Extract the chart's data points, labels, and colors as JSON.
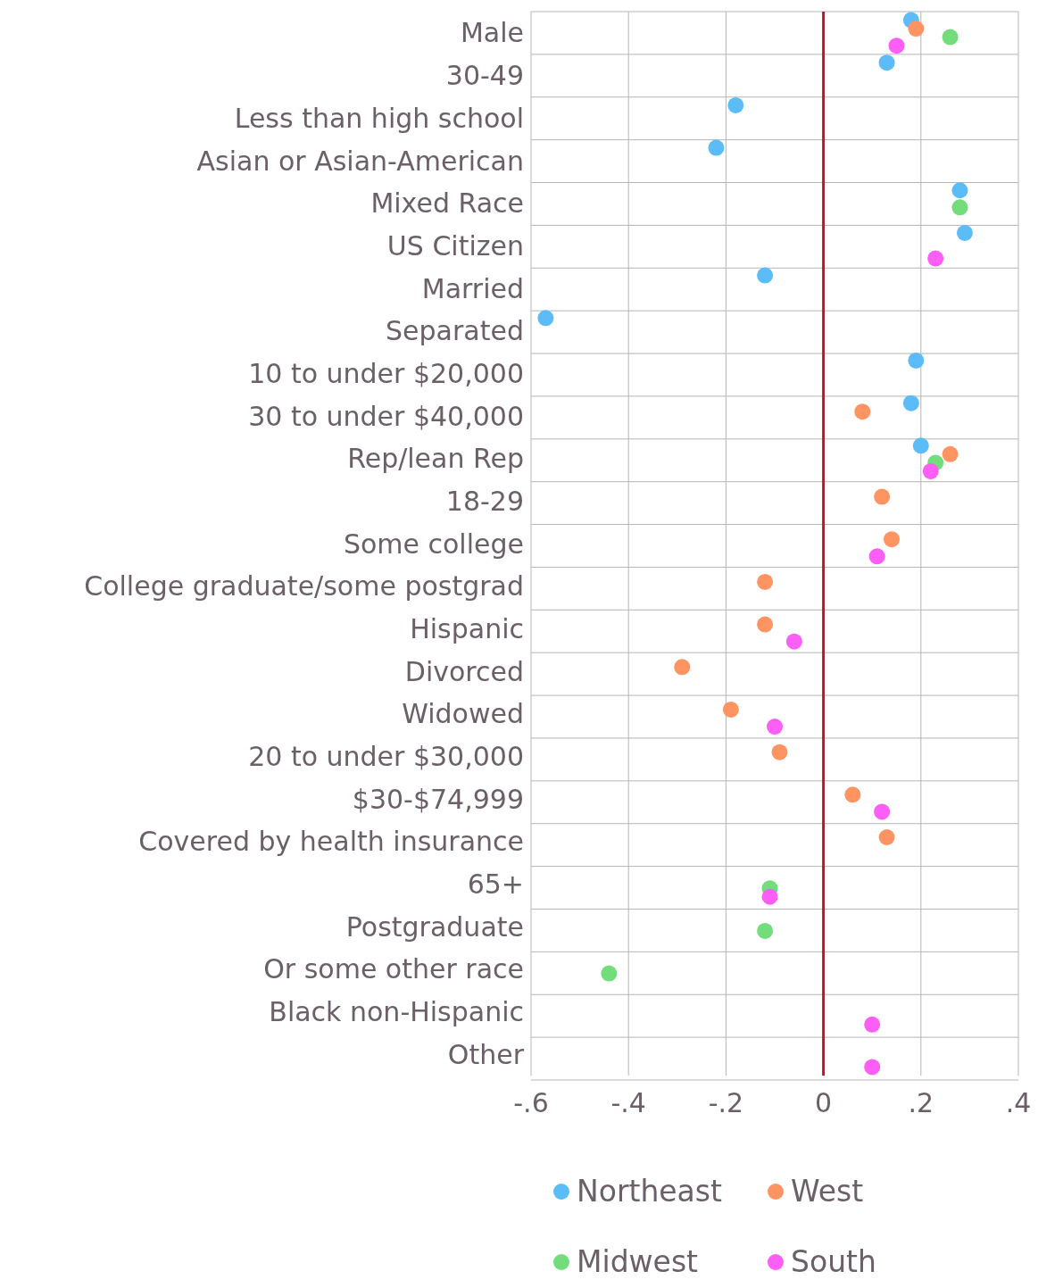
{
  "chart_data": {
    "type": "scatter",
    "orientation": "horizontal",
    "categories": [
      "Male",
      "30-49",
      "Less than high school",
      "Asian or Asian-American",
      "Mixed Race",
      "US Citizen",
      "Married",
      "Separated",
      "10 to under $20,000",
      "30 to under $40,000",
      "Rep/lean Rep",
      "18-29",
      "Some college",
      "College graduate/some postgrad",
      "Hispanic",
      "Divorced",
      "Widowed",
      "20 to under $30,000",
      "$30-$74,999",
      "Covered by health insurance",
      "65+",
      "Postgraduate",
      "Or some other race",
      "Black non-Hispanic",
      "Other"
    ],
    "series": [
      {
        "name": "Northeast",
        "color": "#5bbcf7",
        "values": [
          0.18,
          0.13,
          -0.18,
          -0.22,
          0.28,
          0.29,
          -0.12,
          -0.57,
          0.19,
          0.18,
          0.2,
          null,
          null,
          null,
          null,
          null,
          null,
          null,
          null,
          null,
          null,
          null,
          null,
          null,
          null
        ]
      },
      {
        "name": "West",
        "color": "#fd9462",
        "values": [
          0.19,
          null,
          null,
          null,
          null,
          null,
          null,
          null,
          null,
          0.08,
          0.26,
          0.12,
          0.14,
          -0.12,
          -0.12,
          -0.29,
          -0.19,
          -0.09,
          0.06,
          0.13,
          null,
          null,
          null,
          null,
          null
        ]
      },
      {
        "name": "Midwest",
        "color": "#72dd7a",
        "values": [
          0.26,
          null,
          null,
          null,
          0.28,
          null,
          null,
          null,
          null,
          null,
          0.23,
          null,
          null,
          null,
          null,
          null,
          null,
          null,
          null,
          null,
          -0.11,
          -0.12,
          -0.44,
          null,
          null
        ]
      },
      {
        "name": "South",
        "color": "#fc5ef6",
        "values": [
          0.15,
          null,
          null,
          null,
          null,
          0.23,
          null,
          null,
          null,
          null,
          0.22,
          null,
          0.11,
          null,
          -0.06,
          null,
          -0.1,
          null,
          0.12,
          null,
          -0.11,
          null,
          null,
          0.1,
          0.1
        ]
      }
    ],
    "xlim": [
      -0.6,
      0.4
    ],
    "xticks": [
      {
        "value": -0.6,
        "label": "-.6"
      },
      {
        "value": -0.4,
        "label": "-.4"
      },
      {
        "value": -0.2,
        "label": "-.2"
      },
      0,
      {
        "value": 0.2,
        "label": ".2"
      },
      {
        "value": 0.4,
        "label": ".4"
      }
    ],
    "ref_lines": [
      {
        "axis": "x",
        "value": 0,
        "color": "#c8102e"
      }
    ],
    "grid": true,
    "legend": "bottom",
    "marker": "circle"
  }
}
